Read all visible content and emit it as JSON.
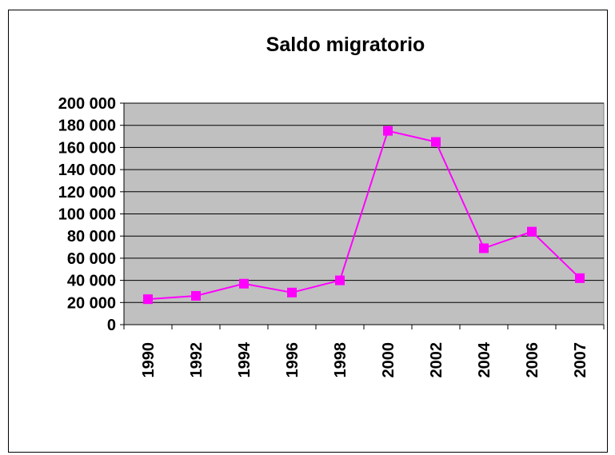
{
  "chart_data": {
    "type": "line",
    "title": "Saldo migratorio",
    "categories": [
      "1990",
      "1992",
      "1994",
      "1996",
      "1998",
      "2000",
      "2002",
      "2004",
      "2006",
      "2007"
    ],
    "values": [
      23000,
      26000,
      37000,
      29000,
      40000,
      175000,
      165000,
      69000,
      84000,
      42000
    ],
    "color": "#ff00ff",
    "plot_background": "#c0c0c0",
    "grid": true,
    "ylim": [
      0,
      200000
    ],
    "yticks": [
      0,
      {
        "value": 20000,
        "label": "20 000"
      },
      {
        "value": 40000,
        "label": "40 000"
      },
      {
        "value": 60000,
        "label": "60 000"
      },
      {
        "value": 80000,
        "label": "80 000"
      },
      {
        "value": 100000,
        "label": "100 000"
      },
      {
        "value": 120000,
        "label": "120 000"
      },
      {
        "value": 140000,
        "label": "140 000"
      },
      {
        "value": 160000,
        "label": "160 000"
      },
      {
        "value": 180000,
        "label": "180 000"
      },
      {
        "value": 200000,
        "label": "200 000"
      }
    ]
  }
}
